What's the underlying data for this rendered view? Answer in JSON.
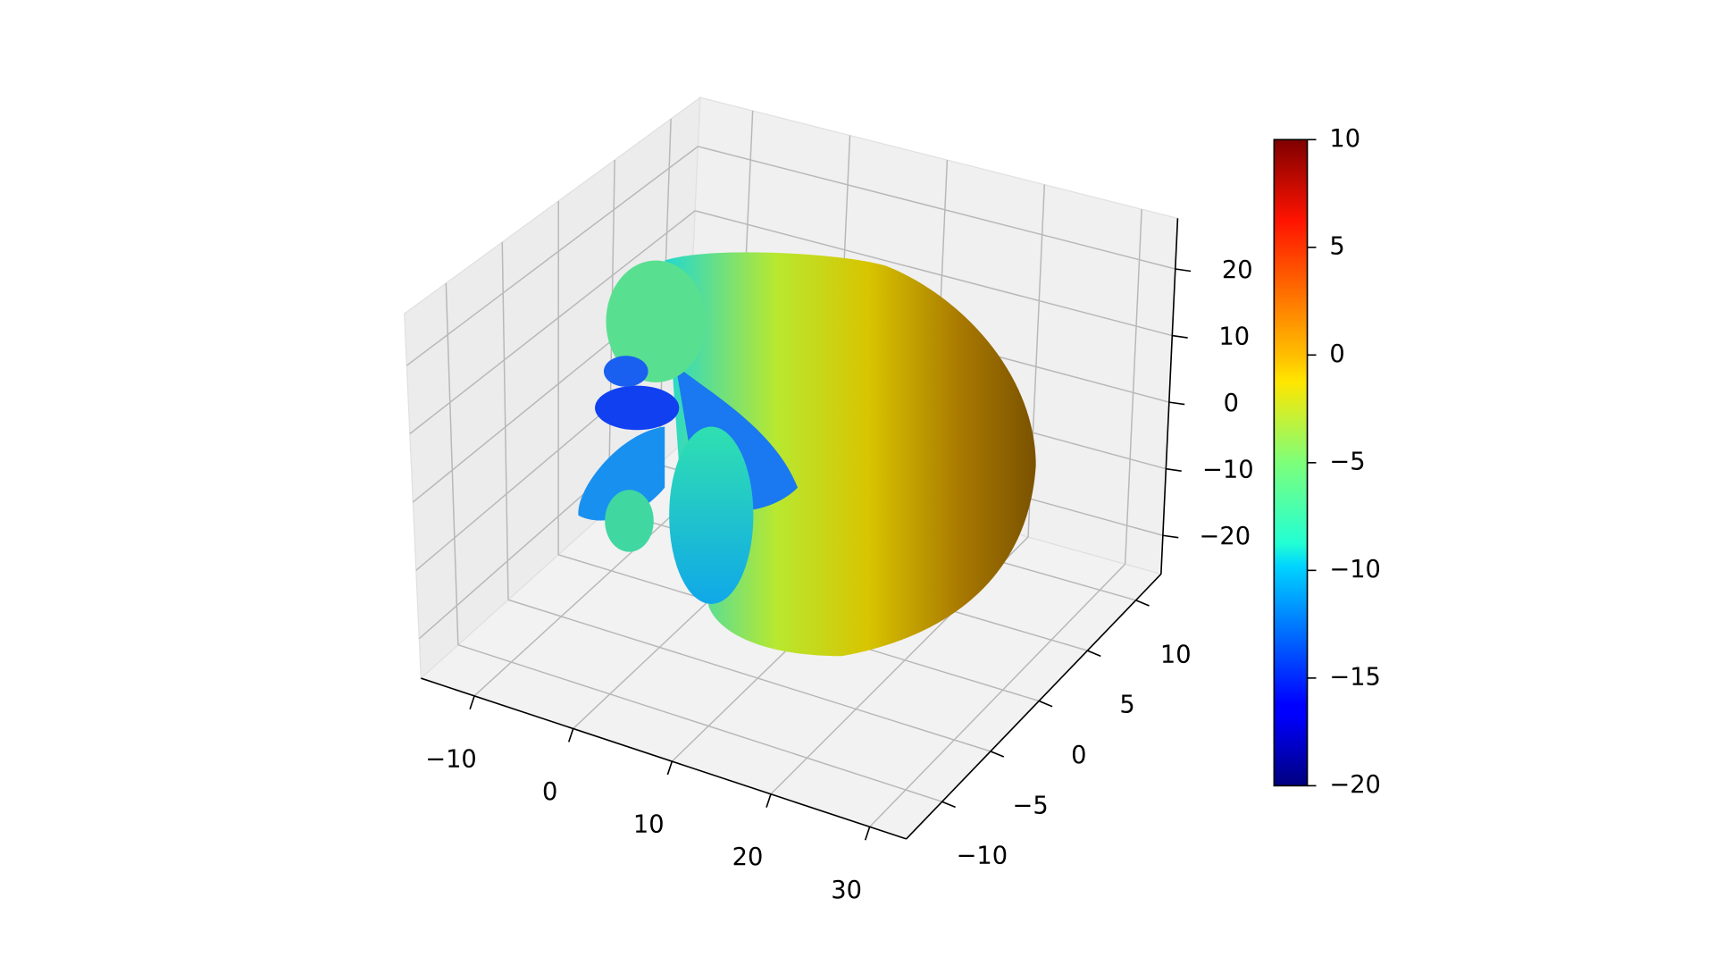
{
  "chart_data": {
    "type": "surface3d",
    "xlim": [
      -15.4,
      33.7
    ],
    "ylim": [
      -13.7,
      12.6
    ],
    "zlim": [
      -25.8,
      27.6
    ],
    "xticks": [
      {
        "value": -10,
        "label": "−10"
      },
      0,
      10,
      20,
      30
    ],
    "yticks": [
      {
        "value": -10,
        "label": "−10"
      },
      {
        "value": -5,
        "label": "−5"
      },
      0,
      5,
      10
    ],
    "zticks": [
      {
        "value": -20,
        "label": "−20"
      },
      {
        "value": -10,
        "label": "−10"
      },
      0,
      10,
      20
    ],
    "grid": true,
    "colorbar": {
      "colormap": "jet",
      "clim": [
        -20,
        10
      ],
      "ticks": [
        {
          "value": -20,
          "label": "−20"
        },
        {
          "value": -15,
          "label": "−15"
        },
        {
          "value": -10,
          "label": "−10"
        },
        {
          "value": -5,
          "label": "−5"
        },
        0,
        5,
        10
      ]
    }
  }
}
